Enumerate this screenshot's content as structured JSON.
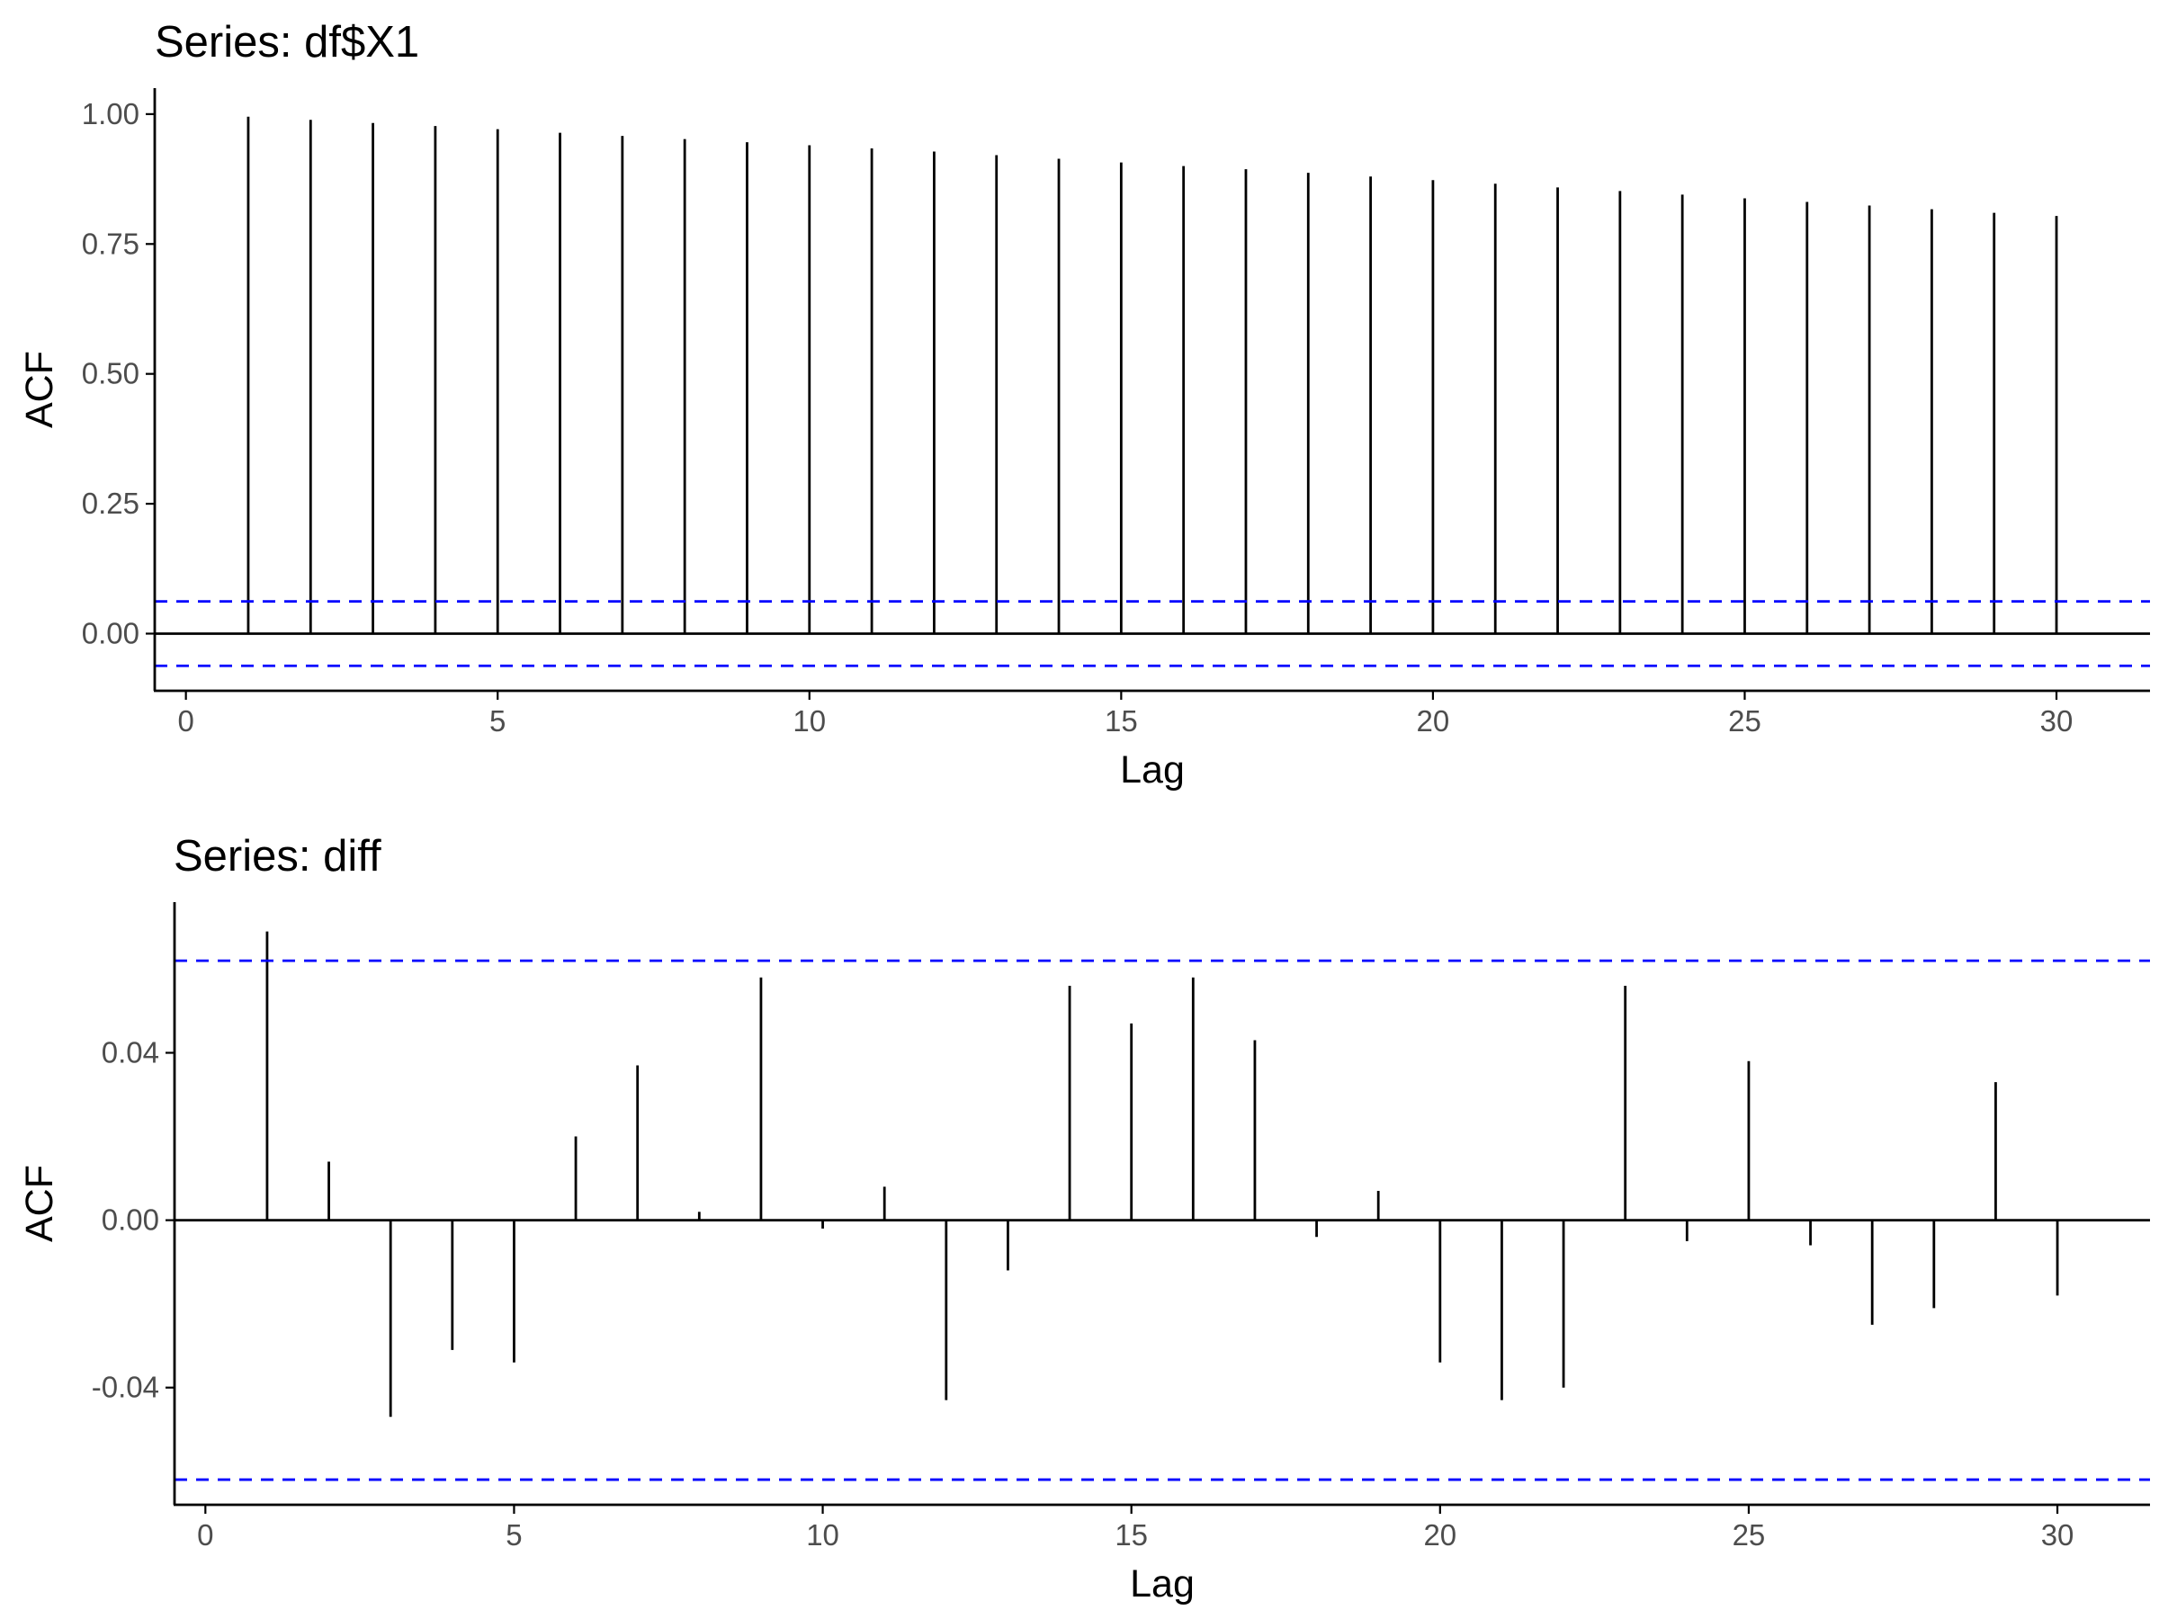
{
  "chart_data": [
    {
      "type": "bar",
      "title": "Series: df$X1",
      "xlabel": "Lag",
      "ylabel": "ACF",
      "xlim": [
        -0.5,
        31.5
      ],
      "ylim": [
        -0.11,
        1.05
      ],
      "x_ticks": [
        0,
        5,
        10,
        15,
        20,
        25,
        30
      ],
      "y_ticks": [
        0.0,
        0.25,
        0.5,
        0.75,
        1.0
      ],
      "y_tick_labels": [
        "0.00",
        "0.25",
        "0.50",
        "0.75",
        "1.00"
      ],
      "grid": false,
      "ci_bounds": [
        0.062,
        -0.062
      ],
      "ci_color": "#0000ff",
      "stem_color": "#000000",
      "series": [
        {
          "lags": [
            1,
            2,
            3,
            4,
            5,
            6,
            7,
            8,
            9,
            10,
            11,
            12,
            13,
            14,
            15,
            16,
            17,
            18,
            19,
            20,
            21,
            22,
            23,
            24,
            25,
            26,
            27,
            28,
            29,
            30
          ],
          "values": [
            0.995,
            0.989,
            0.983,
            0.977,
            0.971,
            0.964,
            0.958,
            0.952,
            0.946,
            0.94,
            0.934,
            0.928,
            0.921,
            0.914,
            0.907,
            0.9,
            0.894,
            0.887,
            0.88,
            0.873,
            0.866,
            0.859,
            0.852,
            0.845,
            0.838,
            0.831,
            0.824,
            0.817,
            0.81,
            0.804
          ]
        }
      ]
    },
    {
      "type": "bar",
      "title": "Series: diff",
      "xlabel": "Lag",
      "ylabel": "ACF",
      "xlim": [
        -0.5,
        31.5
      ],
      "ylim": [
        -0.068,
        0.076
      ],
      "x_ticks": [
        0,
        5,
        10,
        15,
        20,
        25,
        30
      ],
      "y_ticks": [
        -0.04,
        0.0,
        0.04
      ],
      "y_tick_labels": [
        "-0.04",
        "0.00",
        "0.04"
      ],
      "grid": false,
      "ci_bounds": [
        0.062,
        -0.062
      ],
      "ci_color": "#0000ff",
      "stem_color": "#000000",
      "series": [
        {
          "lags": [
            1,
            2,
            3,
            4,
            5,
            6,
            7,
            8,
            9,
            10,
            11,
            12,
            13,
            14,
            15,
            16,
            17,
            18,
            19,
            20,
            21,
            22,
            23,
            24,
            25,
            26,
            27,
            28,
            29,
            30
          ],
          "values": [
            0.069,
            0.014,
            -0.047,
            -0.031,
            -0.034,
            0.02,
            0.037,
            0.002,
            0.058,
            -0.002,
            0.008,
            -0.043,
            -0.012,
            0.056,
            0.047,
            0.058,
            0.043,
            -0.004,
            0.007,
            -0.034,
            -0.043,
            -0.04,
            0.056,
            -0.005,
            0.038,
            -0.006,
            -0.025,
            -0.021,
            0.033,
            -0.018
          ]
        }
      ]
    }
  ]
}
